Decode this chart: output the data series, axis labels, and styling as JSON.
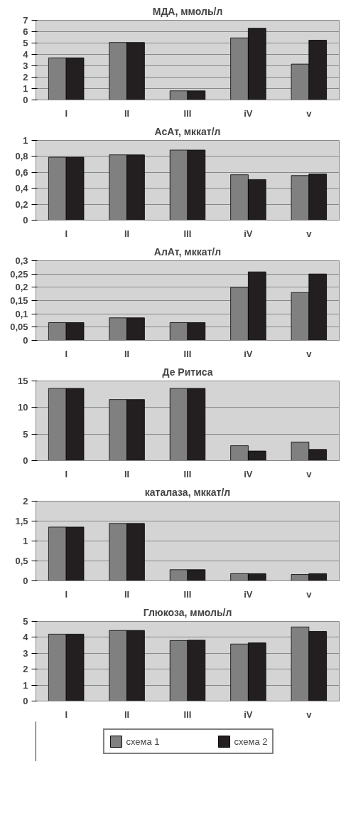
{
  "chart_data": [
    {
      "type": "bar",
      "title": "МДА, ммоль/л",
      "categories": [
        "I",
        "II",
        "III",
        "iV",
        "v"
      ],
      "ylim": [
        0,
        7
      ],
      "yticks": [
        0,
        1,
        2,
        3,
        4,
        5,
        6,
        7
      ],
      "grid": "y",
      "series": [
        {
          "color": "#808080",
          "values": [
            3.7,
            5.05,
            0.8,
            5.45,
            3.15
          ]
        },
        {
          "color": "#231f20",
          "values": [
            3.7,
            5.05,
            0.8,
            6.3,
            5.25
          ]
        }
      ]
    },
    {
      "type": "bar",
      "title": "АсАт, мккат/л",
      "categories": [
        "I",
        "II",
        "III",
        "iV",
        "v"
      ],
      "ylim": [
        0,
        1
      ],
      "yticks": [
        0,
        {
          "value": 0.2,
          "label": "0,2"
        },
        {
          "value": 0.4,
          "label": "0,4"
        },
        {
          "value": 0.6,
          "label": "0,6"
        },
        {
          "value": 0.8,
          "label": "0,8"
        },
        1
      ],
      "grid": "y",
      "series": [
        {
          "color": "#808080",
          "values": [
            0.79,
            0.82,
            0.88,
            0.57,
            0.56
          ]
        },
        {
          "color": "#231f20",
          "values": [
            0.79,
            0.82,
            0.88,
            0.51,
            0.58
          ]
        }
      ]
    },
    {
      "type": "bar",
      "title": "АлАт, мккат/л",
      "categories": [
        "I",
        "II",
        "III",
        "iV",
        "v"
      ],
      "ylim": [
        0,
        0.3
      ],
      "yticks": [
        0,
        {
          "value": 0.05,
          "label": "0,05"
        },
        {
          "value": 0.1,
          "label": "0,1"
        },
        {
          "value": 0.15,
          "label": "0,15"
        },
        {
          "value": 0.2,
          "label": "0,2"
        },
        {
          "value": 0.25,
          "label": "0,25"
        },
        {
          "value": 0.3,
          "label": "0,3"
        }
      ],
      "grid": "y",
      "series": [
        {
          "color": "#808080",
          "values": [
            0.067,
            0.085,
            0.067,
            0.2,
            0.18
          ]
        },
        {
          "color": "#231f20",
          "values": [
            0.067,
            0.085,
            0.067,
            0.258,
            0.25
          ]
        }
      ]
    },
    {
      "type": "bar",
      "title": "Де Ритиса",
      "categories": [
        "I",
        "II",
        "III",
        "iV",
        "v"
      ],
      "ylim": [
        0,
        15
      ],
      "yticks": [
        0,
        5,
        10,
        15
      ],
      "grid": "y",
      "series": [
        {
          "color": "#808080",
          "values": [
            13.6,
            11.5,
            13.6,
            2.8,
            3.5
          ]
        },
        {
          "color": "#231f20",
          "values": [
            13.6,
            11.5,
            13.6,
            1.8,
            2.1
          ]
        }
      ]
    },
    {
      "type": "bar",
      "title": "каталаза, мккат/л",
      "categories": [
        "I",
        "II",
        "III",
        "iV",
        "v"
      ],
      "ylim": [
        0,
        2
      ],
      "yticks": [
        0,
        {
          "value": 0.5,
          "label": "0,5"
        },
        1,
        {
          "value": 1.5,
          "label": "1,5"
        },
        2
      ],
      "grid": "y",
      "series": [
        {
          "color": "#808080",
          "values": [
            1.35,
            1.44,
            0.28,
            0.18,
            0.16
          ]
        },
        {
          "color": "#231f20",
          "values": [
            1.35,
            1.44,
            0.28,
            0.18,
            0.18
          ]
        }
      ]
    },
    {
      "type": "bar",
      "title": "Глюкоза, ммоль/л",
      "categories": [
        "I",
        "II",
        "III",
        "iV",
        "v"
      ],
      "ylim": [
        0,
        5
      ],
      "yticks": [
        0,
        1,
        2,
        3,
        4,
        5
      ],
      "grid": "y",
      "legend": "bottom",
      "series": [
        {
          "name": "схема 1",
          "color": "#808080",
          "values": [
            4.2,
            4.43,
            3.8,
            3.58,
            4.65
          ]
        },
        {
          "name": "схема 2",
          "color": "#231f20",
          "values": [
            4.2,
            4.43,
            3.82,
            3.65,
            4.37
          ]
        }
      ]
    }
  ]
}
